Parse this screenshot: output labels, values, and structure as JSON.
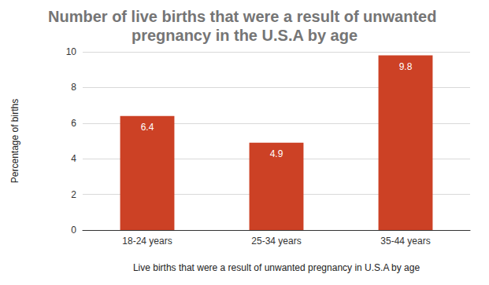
{
  "chart_data": {
    "type": "bar",
    "title": "Number of live births that were a result of unwanted pregnancy in the U.S.A by age",
    "x_label": "Live births that were a result of unwanted pregnancy in U.S.A by age",
    "y_label": "Percentage of births",
    "categories": [
      "18-24 years",
      "25-34 years",
      "35-44 years"
    ],
    "values": [
      6.4,
      4.9,
      9.8
    ],
    "color": "#cc4125",
    "ylim": [
      0,
      10
    ],
    "yticks": [
      0,
      2,
      4,
      6,
      8,
      10
    ],
    "grid": true,
    "data_labels": true
  }
}
